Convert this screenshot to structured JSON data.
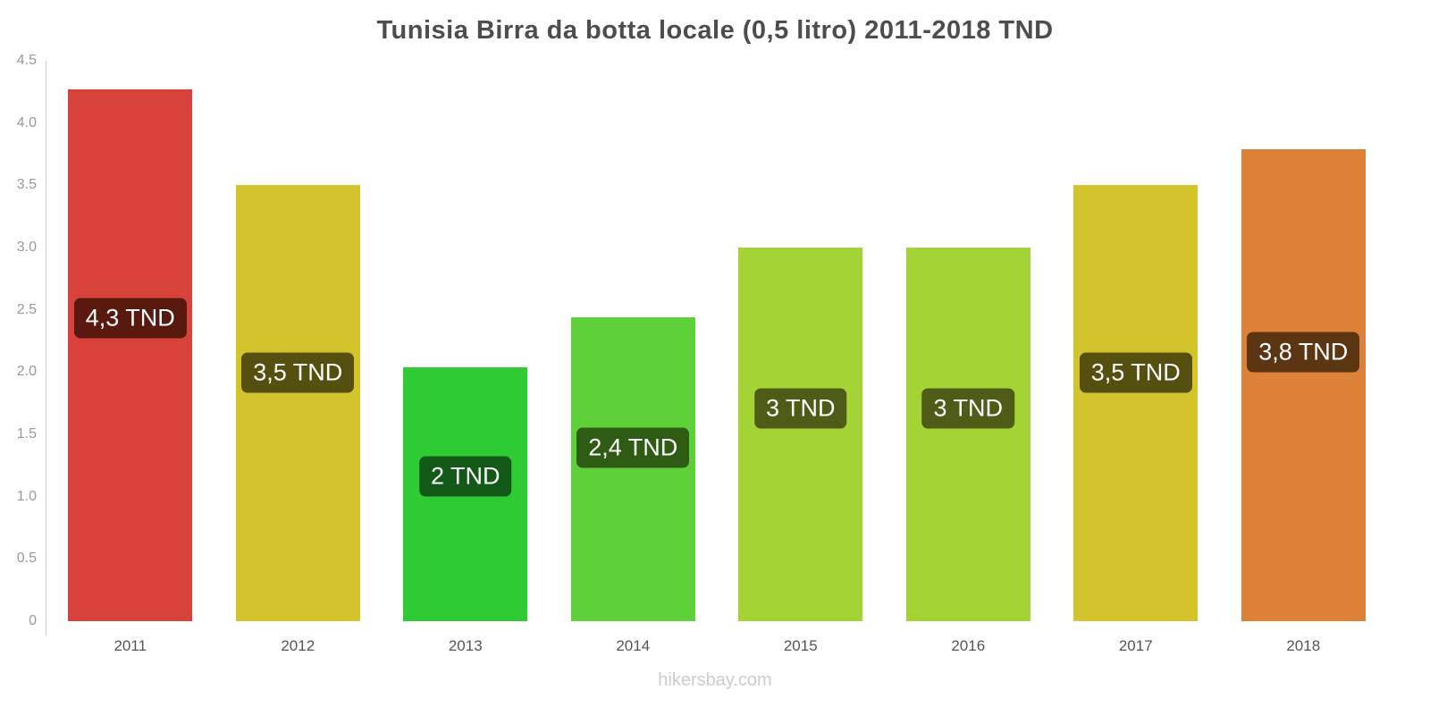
{
  "title": "Tunisia Birra da botta locale (0,5 litro) 2011-2018 TND",
  "footer": {
    "watermark": "hikersbay.com"
  },
  "chart_data": {
    "type": "bar",
    "title": "Tunisia Birra da botta locale (0,5 litro) 2011-2018 TND",
    "categories": [
      "2011",
      "2012",
      "2013",
      "2014",
      "2015",
      "2016",
      "2017",
      "2018"
    ],
    "values": [
      4.27,
      3.5,
      2.04,
      2.44,
      3.0,
      3.0,
      3.5,
      3.79
    ],
    "labels": [
      "4,3 TND",
      "3,5 TND",
      "2 TND",
      "2,4 TND",
      "3 TND",
      "3 TND",
      "3,5 TND",
      "3,8 TND"
    ],
    "bar_colors": [
      "#d9423a",
      "#d3c32c",
      "#2fcb35",
      "#5ed13a",
      "#a3d334",
      "#a3d334",
      "#d3c32c",
      "#dd8038"
    ],
    "label_bg_colors": [
      "#5a190f",
      "#555010",
      "#135a18",
      "#2e5c15",
      "#4f5c17",
      "#4f5c17",
      "#555010",
      "#5c3513"
    ],
    "xlabel": "",
    "ylabel": "",
    "ylim": [
      0,
      4.5
    ],
    "yticks": [
      "0",
      "0.5",
      "1.0",
      "1.5",
      "2.0",
      "2.5",
      "3.0",
      "3.5",
      "4.0",
      "4.5"
    ],
    "ytick_values": [
      0,
      0.5,
      1.0,
      1.5,
      2.0,
      2.5,
      3.0,
      3.5,
      4.0,
      4.5
    ],
    "grid": false,
    "legend": false,
    "currency": "TND"
  }
}
